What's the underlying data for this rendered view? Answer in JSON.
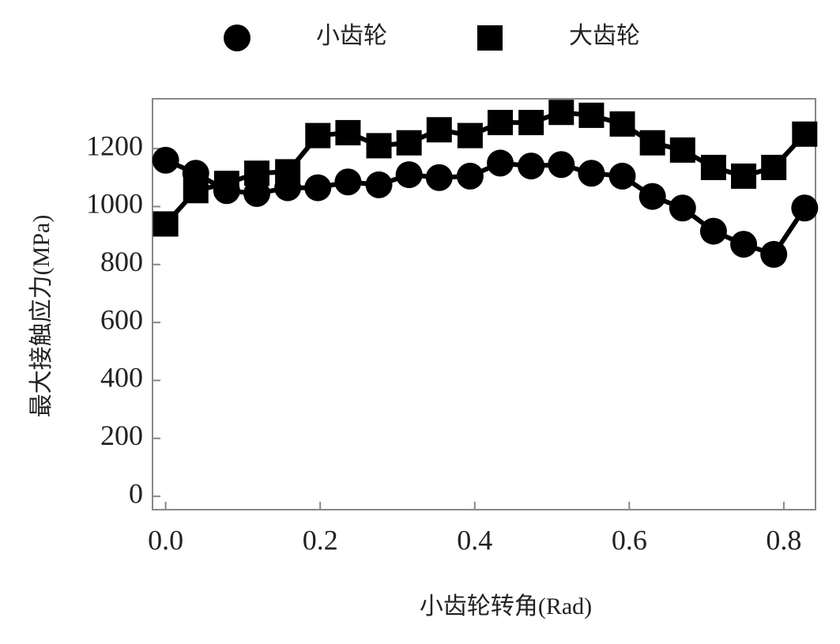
{
  "chart_data": {
    "type": "line",
    "x_label": "小齿轮转角(Rad)",
    "y_label": "最大接触应力(MPa)",
    "x": [
      0,
      0.039,
      0.079,
      0.118,
      0.158,
      0.197,
      0.236,
      0.276,
      0.315,
      0.354,
      0.394,
      0.433,
      0.473,
      0.512,
      0.551,
      0.591,
      0.63,
      0.669,
      0.709,
      0.748,
      0.787,
      0.827
    ],
    "series": [
      {
        "name": "小齿轮",
        "color": "#000000",
        "marker": "circle",
        "values": [
          1160,
          1115,
          1055,
          1045,
          1065,
          1065,
          1085,
          1075,
          1110,
          1100,
          1105,
          1150,
          1140,
          1145,
          1115,
          1105,
          1035,
          995,
          915,
          870,
          835,
          995
        ]
      },
      {
        "name": "大齿轮",
        "color": "#000000",
        "marker": "square",
        "values": [
          940,
          1055,
          1080,
          1115,
          1120,
          1245,
          1255,
          1210,
          1220,
          1265,
          1245,
          1290,
          1290,
          1325,
          1315,
          1285,
          1220,
          1195,
          1135,
          1105,
          1135,
          1250
        ]
      }
    ],
    "xlim": [
      -0.017,
      0.841
    ],
    "xticks": [
      {
        "value": 0,
        "label": "0.0"
      },
      0.2,
      0.4,
      0.6,
      0.8
    ],
    "ylim": [
      -46,
      1372
    ],
    "yticks": [
      0,
      200,
      400,
      600,
      800,
      1000,
      1200
    ],
    "grid": false
  }
}
